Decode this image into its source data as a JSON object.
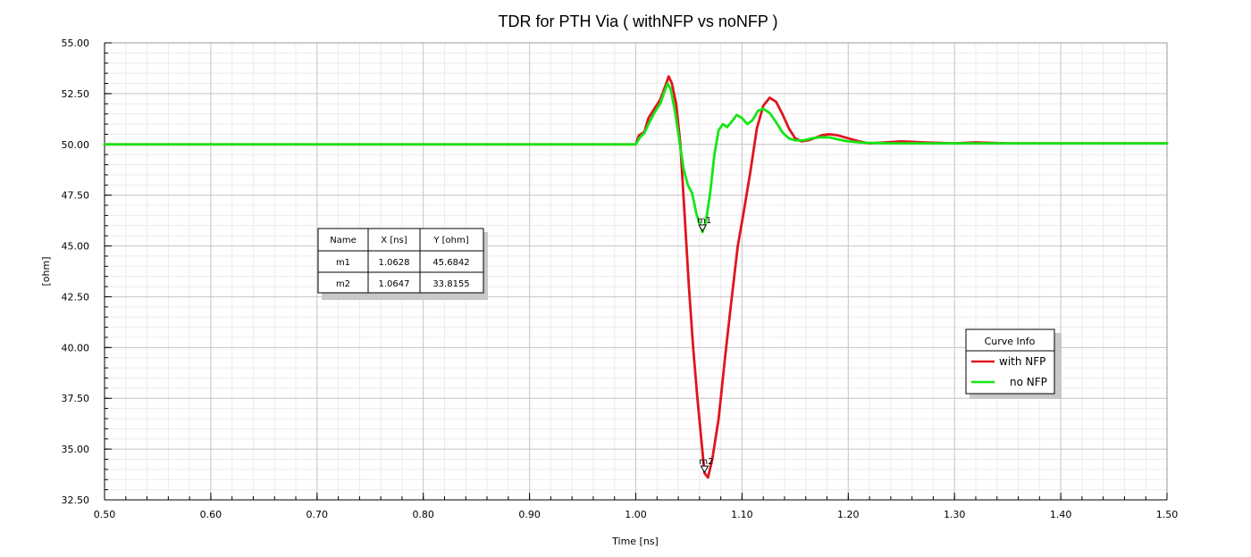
{
  "chart_data": {
    "type": "line",
    "title": "TDR for PTH Via ( withNFP vs noNFP )",
    "xlabel": "Time [ns]",
    "ylabel": "[ohm]",
    "xlim": [
      0.5,
      1.5
    ],
    "ylim": [
      32.5,
      55.0
    ],
    "x_ticks": [
      0.5,
      0.6,
      0.7,
      0.8,
      0.9,
      1.0,
      1.1,
      1.2,
      1.3,
      1.4,
      1.5
    ],
    "x_tick_labels": [
      "0.50",
      "0.60",
      "0.70",
      "0.80",
      "0.90",
      "1.00",
      "1.10",
      "1.20",
      "1.30",
      "1.40",
      "1.50"
    ],
    "y_ticks": [
      32.5,
      35.0,
      37.5,
      40.0,
      42.5,
      45.0,
      47.5,
      50.0,
      52.5,
      55.0
    ],
    "y_tick_labels": [
      "32.50",
      "35.00",
      "37.50",
      "40.00",
      "42.50",
      "45.00",
      "47.50",
      "50.00",
      "52.50",
      "55.00"
    ],
    "grid": true,
    "legend_position": "right",
    "legend_title": "Curve Info",
    "series": [
      {
        "name": "with NFP",
        "color": "#e0141e",
        "points": [
          [
            0.5,
            50.0
          ],
          [
            1.0,
            50.0
          ],
          [
            1.003,
            50.45
          ],
          [
            1.008,
            50.6
          ],
          [
            1.012,
            51.3
          ],
          [
            1.018,
            51.8
          ],
          [
            1.023,
            52.2
          ],
          [
            1.028,
            52.9
          ],
          [
            1.031,
            53.35
          ],
          [
            1.034,
            53.0
          ],
          [
            1.038,
            52.0
          ],
          [
            1.042,
            50.0
          ],
          [
            1.046,
            46.5
          ],
          [
            1.05,
            43.0
          ],
          [
            1.054,
            40.0
          ],
          [
            1.058,
            37.5
          ],
          [
            1.062,
            35.3
          ],
          [
            1.0647,
            33.8155
          ],
          [
            1.068,
            33.6
          ],
          [
            1.072,
            34.5
          ],
          [
            1.078,
            36.5
          ],
          [
            1.084,
            39.5
          ],
          [
            1.09,
            42.3
          ],
          [
            1.096,
            45.0
          ],
          [
            1.102,
            46.8
          ],
          [
            1.108,
            48.7
          ],
          [
            1.114,
            50.8
          ],
          [
            1.12,
            51.9
          ],
          [
            1.126,
            52.3
          ],
          [
            1.132,
            52.1
          ],
          [
            1.138,
            51.5
          ],
          [
            1.144,
            50.8
          ],
          [
            1.15,
            50.3
          ],
          [
            1.156,
            50.15
          ],
          [
            1.162,
            50.2
          ],
          [
            1.168,
            50.3
          ],
          [
            1.175,
            50.45
          ],
          [
            1.182,
            50.5
          ],
          [
            1.19,
            50.45
          ],
          [
            1.2,
            50.3
          ],
          [
            1.21,
            50.15
          ],
          [
            1.22,
            50.05
          ],
          [
            1.235,
            50.1
          ],
          [
            1.25,
            50.15
          ],
          [
            1.27,
            50.1
          ],
          [
            1.3,
            50.05
          ],
          [
            1.32,
            50.1
          ],
          [
            1.35,
            50.05
          ],
          [
            1.5,
            50.05
          ]
        ]
      },
      {
        "name": "no NFP",
        "color": "#14e614",
        "points": [
          [
            0.5,
            50.0
          ],
          [
            1.0,
            50.0
          ],
          [
            1.004,
            50.35
          ],
          [
            1.008,
            50.55
          ],
          [
            1.012,
            51.0
          ],
          [
            1.018,
            51.6
          ],
          [
            1.023,
            52.0
          ],
          [
            1.027,
            52.6
          ],
          [
            1.03,
            53.0
          ],
          [
            1.033,
            52.7
          ],
          [
            1.037,
            51.6
          ],
          [
            1.041,
            50.2
          ],
          [
            1.045,
            48.8
          ],
          [
            1.049,
            48.0
          ],
          [
            1.053,
            47.6
          ],
          [
            1.057,
            46.6
          ],
          [
            1.0628,
            45.6842
          ],
          [
            1.066,
            46.2
          ],
          [
            1.07,
            47.6
          ],
          [
            1.074,
            49.5
          ],
          [
            1.078,
            50.7
          ],
          [
            1.082,
            51.0
          ],
          [
            1.086,
            50.85
          ],
          [
            1.09,
            51.1
          ],
          [
            1.095,
            51.45
          ],
          [
            1.1,
            51.3
          ],
          [
            1.105,
            51.0
          ],
          [
            1.11,
            51.2
          ],
          [
            1.115,
            51.65
          ],
          [
            1.12,
            51.75
          ],
          [
            1.126,
            51.55
          ],
          [
            1.132,
            51.1
          ],
          [
            1.138,
            50.6
          ],
          [
            1.144,
            50.3
          ],
          [
            1.15,
            50.2
          ],
          [
            1.158,
            50.2
          ],
          [
            1.166,
            50.3
          ],
          [
            1.174,
            50.35
          ],
          [
            1.182,
            50.35
          ],
          [
            1.19,
            50.25
          ],
          [
            1.2,
            50.15
          ],
          [
            1.215,
            50.08
          ],
          [
            1.24,
            50.05
          ],
          [
            1.3,
            50.05
          ],
          [
            1.5,
            50.05
          ]
        ]
      }
    ],
    "markers": [
      {
        "name": "m1",
        "x": 1.0628,
        "y": 45.6842
      },
      {
        "name": "m2",
        "x": 1.0647,
        "y": 33.8155
      }
    ],
    "marker_table": {
      "headers": [
        "Name",
        "X [ns]",
        "Y [ohm]"
      ],
      "rows": [
        [
          "m1",
          "1.0628",
          "45.6842"
        ],
        [
          "m2",
          "1.0647",
          "33.8155"
        ]
      ]
    }
  }
}
